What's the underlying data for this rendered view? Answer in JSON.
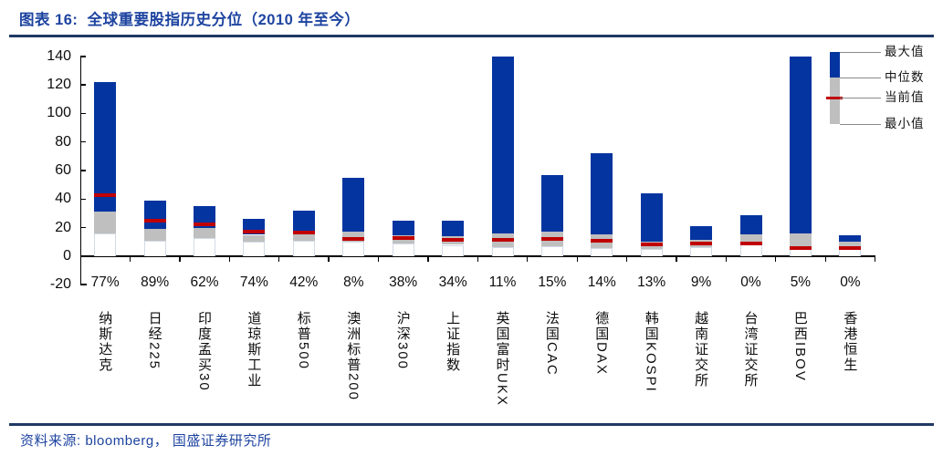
{
  "header": {
    "title": "图表 16:  全球重要股指历史分位（2010 年至今）"
  },
  "footer": {
    "source": "资料来源: bloomberg， 国盛证券研究所"
  },
  "legend": {
    "items": [
      "最大值",
      "中位数",
      "当前值",
      "最小值"
    ]
  },
  "chart_data": {
    "type": "bar",
    "subtype": "floating-range-bars-with-current-marker",
    "title": "全球重要股指历史分位（2010 年至今）",
    "categories": [
      "纳斯达克",
      "日经225",
      "印度孟买30",
      "道琼斯工业",
      "标普500",
      "澳洲标普200",
      "沪深300",
      "上证指数",
      "英国富时UKX",
      "法国CAC",
      "德国DAX",
      "韩国KOSPI",
      "越南证交所",
      "台湾证交所",
      "巴西IBOV",
      "香港恒生"
    ],
    "percentile_labels": [
      "77%",
      "89%",
      "62%",
      "74%",
      "42%",
      "8%",
      "38%",
      "34%",
      "11%",
      "15%",
      "14%",
      "13%",
      "9%",
      "0%",
      "5%",
      "0%"
    ],
    "series": [
      {
        "name": "最小值",
        "values": [
          16,
          11,
          13,
          10,
          11,
          10,
          9,
          8,
          6.5,
          7,
          6,
          5,
          6.5,
          9,
          5.5,
          5.5
        ]
      },
      {
        "name": "中位数",
        "values": [
          31,
          19,
          20,
          15,
          17,
          17,
          14.5,
          14,
          16,
          17,
          15.5,
          10,
          11.5,
          15.5,
          16,
          10
        ]
      },
      {
        "name": "当前值",
        "values": [
          43,
          25,
          22.5,
          17,
          16.5,
          12,
          12.5,
          11.5,
          11.5,
          12,
          11,
          8.5,
          8.7,
          9,
          5.5,
          5.5
        ]
      },
      {
        "name": "最大值",
        "values": [
          122,
          39,
          35,
          26,
          32,
          55,
          25,
          25,
          140,
          57,
          72,
          44,
          21,
          29,
          140,
          14.5
        ]
      }
    ],
    "ylim": [
      -20,
      140
    ],
    "yticks": [
      140,
      120,
      100,
      80,
      60,
      40,
      20,
      0,
      -20
    ],
    "grid": false,
    "legend_position": "top-right",
    "colors": {
      "max_segment": "#0434A0",
      "mid_segment": "#BFBFBF",
      "current_marker": "#C00000",
      "spacer_border": "#D3DAE6",
      "axis": "#000000",
      "title_text": "#1E44A0",
      "divider": "#1F3864"
    }
  }
}
